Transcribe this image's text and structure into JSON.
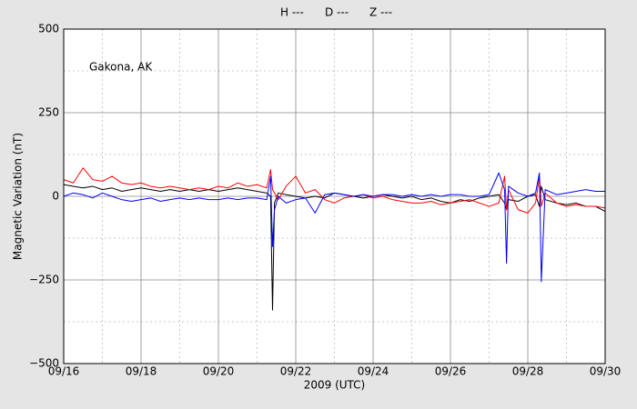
{
  "chart_data": {
    "type": "line",
    "annotation": "Gakona, AK",
    "x_label": "2009 (UTC)",
    "y_label": "Magnetic Variation (nT)",
    "x": [
      16,
      16.25,
      16.5,
      16.75,
      17,
      17.25,
      17.5,
      17.75,
      18,
      18.25,
      18.5,
      18.75,
      19,
      19.25,
      19.5,
      19.75,
      20,
      20.25,
      20.5,
      20.75,
      21,
      21.25,
      21.35,
      21.4,
      21.45,
      21.55,
      21.75,
      22,
      22.25,
      22.5,
      22.75,
      23,
      23.25,
      23.5,
      23.75,
      24,
      24.25,
      24.5,
      24.75,
      25,
      25.25,
      25.5,
      25.75,
      26,
      26.25,
      26.5,
      26.75,
      27,
      27.25,
      27.4,
      27.45,
      27.5,
      27.75,
      28,
      28.2,
      28.3,
      28.35,
      28.45,
      28.75,
      29,
      29.25,
      29.5,
      29.75,
      30
    ],
    "series": [
      {
        "name": "H ---",
        "color": "#000000",
        "values": [
          35,
          30,
          25,
          30,
          20,
          25,
          15,
          20,
          25,
          20,
          15,
          20,
          15,
          20,
          15,
          20,
          15,
          20,
          25,
          20,
          15,
          10,
          0,
          -340,
          -20,
          10,
          5,
          0,
          -5,
          0,
          -5,
          10,
          5,
          0,
          -5,
          0,
          5,
          0,
          -5,
          0,
          -10,
          -5,
          -15,
          -20,
          -10,
          -15,
          -5,
          0,
          5,
          -20,
          -40,
          -10,
          -15,
          0,
          5,
          -30,
          30,
          -10,
          -20,
          -25,
          -20,
          -30,
          -30,
          -45
        ]
      },
      {
        "name": "D ---",
        "color": "#ff0000",
        "values": [
          50,
          40,
          85,
          50,
          45,
          60,
          40,
          35,
          40,
          30,
          25,
          30,
          25,
          20,
          25,
          20,
          30,
          25,
          40,
          30,
          35,
          25,
          80,
          20,
          10,
          -10,
          30,
          60,
          10,
          20,
          -10,
          -20,
          -5,
          0,
          5,
          -5,
          0,
          -10,
          -15,
          -20,
          -20,
          -15,
          -25,
          -20,
          -15,
          -10,
          -20,
          -30,
          -20,
          60,
          -40,
          20,
          -40,
          -50,
          -20,
          60,
          -30,
          10,
          -20,
          -30,
          -25,
          -30,
          -30,
          -35
        ]
      },
      {
        "name": "Z ---",
        "color": "#0000ff",
        "values": [
          0,
          10,
          5,
          -5,
          10,
          0,
          -10,
          -15,
          -10,
          -5,
          -15,
          -10,
          -5,
          -10,
          -5,
          -10,
          -10,
          -5,
          -10,
          -5,
          -5,
          -10,
          60,
          -150,
          -40,
          0,
          -20,
          -10,
          -5,
          -50,
          5,
          10,
          5,
          0,
          5,
          0,
          5,
          5,
          0,
          5,
          0,
          5,
          0,
          5,
          5,
          0,
          0,
          5,
          70,
          20,
          -200,
          30,
          10,
          0,
          10,
          70,
          -255,
          20,
          5,
          10,
          15,
          20,
          15,
          15
        ]
      }
    ],
    "xlim": [
      16,
      30
    ],
    "xticks": [
      {
        "value": 16,
        "label": "09/16"
      },
      {
        "value": 18,
        "label": "09/18"
      },
      {
        "value": 20,
        "label": "09/20"
      },
      {
        "value": 22,
        "label": "09/22"
      },
      {
        "value": 24,
        "label": "09/24"
      },
      {
        "value": 26,
        "label": "09/26"
      },
      {
        "value": 28,
        "label": "09/28"
      },
      {
        "value": 30,
        "label": "09/30"
      }
    ],
    "xminorticks": [
      17,
      19,
      21,
      23,
      25,
      27,
      29
    ],
    "ylim": [
      -500,
      500
    ],
    "yticks": [
      {
        "value": -500,
        "label": "−500"
      },
      {
        "value": -250,
        "label": "−250"
      },
      0,
      250,
      500
    ],
    "yminorticks": [
      -375,
      -125,
      125,
      375
    ],
    "grid": true
  }
}
